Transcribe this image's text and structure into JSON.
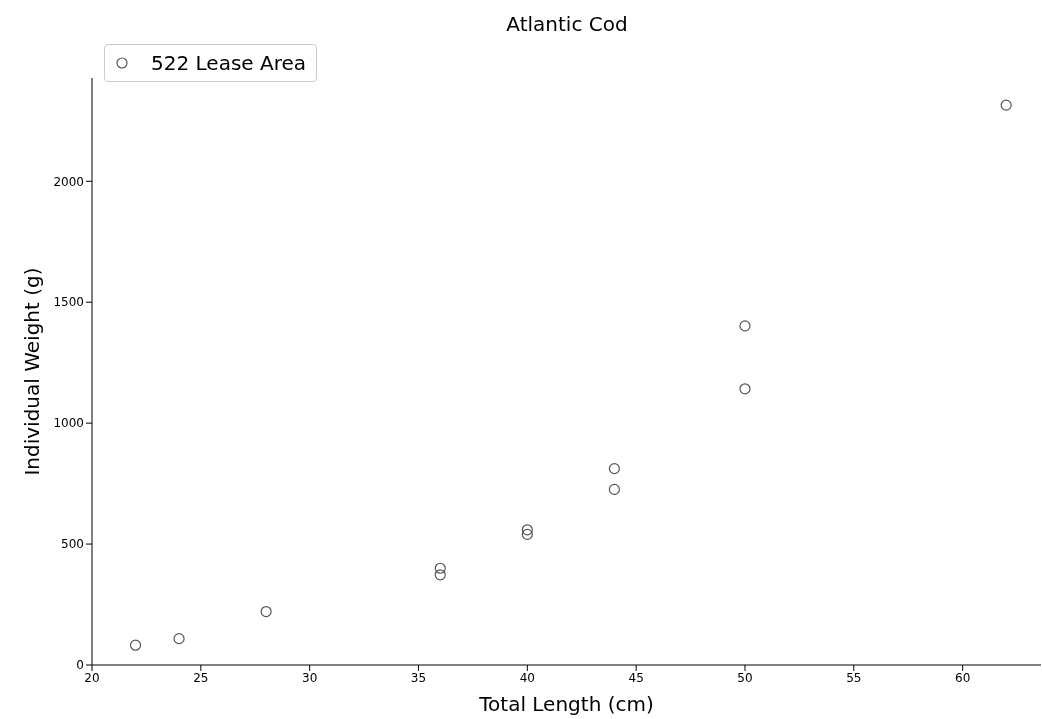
{
  "chart_data": {
    "type": "scatter",
    "title": "Atlantic Cod",
    "xlabel": "Total Length (cm)",
    "ylabel": "Individual Weight (g)",
    "series": [
      {
        "name": "522 Lease Area",
        "color": "#555555",
        "x": [
          22,
          24,
          28,
          36,
          36,
          40,
          40,
          44,
          44,
          50,
          50,
          62
        ],
        "values": [
          82,
          109,
          221,
          400,
          373,
          559,
          540,
          812,
          726,
          1402,
          1142,
          2315
        ]
      }
    ],
    "xlim": [
      20,
      63.6
    ],
    "xticks": [
      20,
      25,
      30,
      35,
      40,
      45,
      50,
      55,
      60
    ],
    "ylim": [
      0,
      2427
    ],
    "yticks": [
      0,
      500,
      1000,
      1500,
      2000
    ],
    "grid": false,
    "legend": "top left",
    "marker": "circle"
  }
}
